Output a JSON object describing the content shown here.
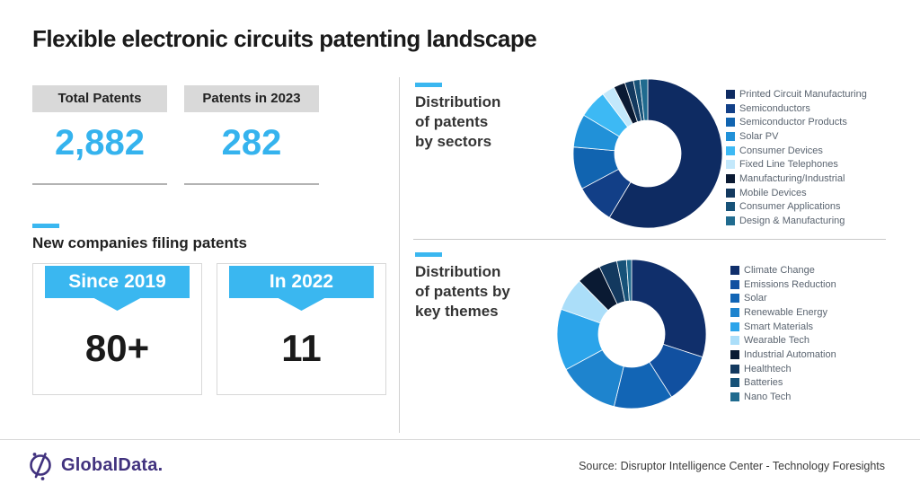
{
  "title": "Flexible electronic circuits patenting landscape",
  "stats": [
    {
      "label": "Total Patents",
      "value": "2,882"
    },
    {
      "label": "Patents in 2023",
      "value": "282"
    }
  ],
  "new_companies": {
    "heading": "New companies filing patents",
    "cards": [
      {
        "ribbon": "Since 2019",
        "value": "80+"
      },
      {
        "ribbon": "In 2022",
        "value": "11"
      }
    ]
  },
  "colors": {
    "accent_cyan": "#3ab7f0",
    "stat_number": "#35b3ee",
    "logo_purple": "#41327e"
  },
  "chart_data": [
    {
      "type": "pie",
      "subtype": "donut",
      "title": "Distribution of patents by sectors",
      "title_lines": [
        "Distribution",
        "of patents",
        "by sectors"
      ],
      "legend_position": "right",
      "unit": "percent_estimated",
      "segments": [
        {
          "label": "Printed Circuit Manufacturing",
          "value": 58.6,
          "color": "#0e2b62"
        },
        {
          "label": "Semiconductors",
          "value": 8.6,
          "color": "#123f87"
        },
        {
          "label": "Semiconductor Products",
          "value": 9.2,
          "color": "#1164b0"
        },
        {
          "label": "Solar PV",
          "value": 7.2,
          "color": "#2191d8"
        },
        {
          "label": "Consumer Devices",
          "value": 6.1,
          "color": "#3db9f4"
        },
        {
          "label": "Fixed Line Telephones",
          "value": 2.8,
          "color": "#c3e8fb"
        },
        {
          "label": "Manufacturing/Industrial",
          "value": 2.5,
          "color": "#0a1a33"
        },
        {
          "label": "Mobile Devices",
          "value": 1.9,
          "color": "#13395f"
        },
        {
          "label": "Consumer Applications",
          "value": 1.4,
          "color": "#175278"
        },
        {
          "label": "Design & Manufacturing",
          "value": 1.7,
          "color": "#206b8f"
        }
      ]
    },
    {
      "type": "pie",
      "subtype": "donut",
      "title": "Distribution of patents by key themes",
      "title_lines": [
        "Distribution",
        "of patents by",
        "key themes"
      ],
      "legend_position": "right",
      "unit": "percent_estimated",
      "segments": [
        {
          "label": "Climate Change",
          "value": 30.0,
          "color": "#102f6b"
        },
        {
          "label": "Emissions Reduction",
          "value": 11.0,
          "color": "#1150a0"
        },
        {
          "label": "Solar",
          "value": 12.8,
          "color": "#1265b5"
        },
        {
          "label": "Renewable Energy",
          "value": 13.3,
          "color": "#1e84ce"
        },
        {
          "label": "Smart Materials",
          "value": 13.3,
          "color": "#2ba4ea"
        },
        {
          "label": "Wearable Tech",
          "value": 7.2,
          "color": "#abdef9"
        },
        {
          "label": "Industrial Automation",
          "value": 5.3,
          "color": "#0a1a33"
        },
        {
          "label": "Healthtech",
          "value": 3.9,
          "color": "#13395f"
        },
        {
          "label": "Batteries",
          "value": 2.1,
          "color": "#175278"
        },
        {
          "label": "Nano Tech",
          "value": 1.1,
          "color": "#206b8f"
        }
      ]
    }
  ],
  "footer": {
    "logo_text": "GlobalData.",
    "source": "Source: Disruptor Intelligence Center - Technology Foresights"
  }
}
